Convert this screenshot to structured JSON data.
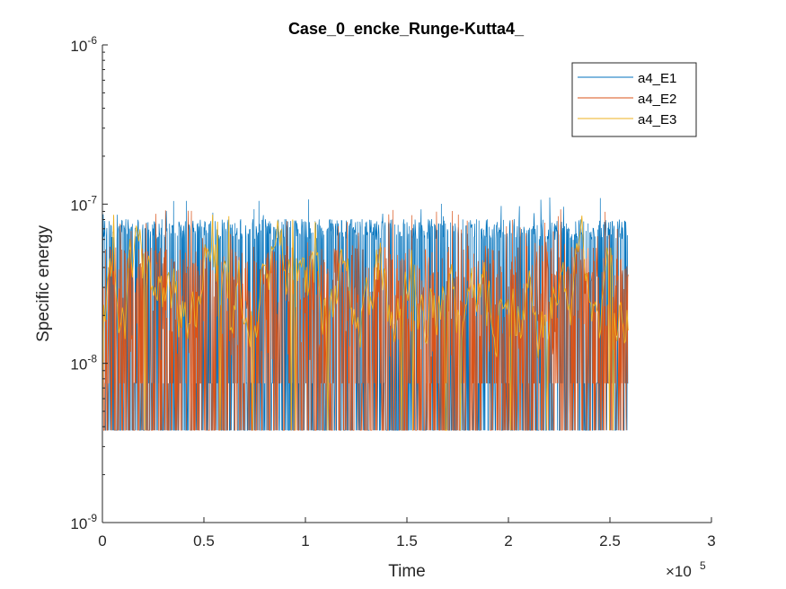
{
  "chart_data": {
    "type": "line",
    "title": "Case_0_encke_Runge-Kutta4_",
    "xlabel": "Time",
    "ylabel": "Specific energy",
    "x_exponent_label": "×10",
    "x_exponent_power": "5",
    "xlim": [
      0,
      300000
    ],
    "ylim": [
      1e-09,
      1e-06
    ],
    "yscale": "log",
    "grid": false,
    "legend_position": "top-right",
    "x_ticks": [
      {
        "value": 0,
        "label": "0"
      },
      {
        "value": 50000,
        "label": "0.5"
      },
      {
        "value": 100000,
        "label": "1"
      },
      {
        "value": 150000,
        "label": "1.5"
      },
      {
        "value": 200000,
        "label": "2"
      },
      {
        "value": 250000,
        "label": "2.5"
      },
      {
        "value": 300000,
        "label": "3"
      }
    ],
    "y_ticks": [
      {
        "value": 1e-09,
        "base": "10",
        "exp": "-9"
      },
      {
        "value": 1e-08,
        "base": "10",
        "exp": "-8"
      },
      {
        "value": 1e-07,
        "base": "10",
        "exp": "-7"
      },
      {
        "value": 1e-06,
        "base": "10",
        "exp": "-6"
      }
    ],
    "series": [
      {
        "name": "a4_E1",
        "color": "#0072BD",
        "x_range": [
          0,
          259000
        ],
        "min": 3.8e-09,
        "max": 1.1e-07,
        "typical_high": 7e-08,
        "typical_low": 7.5e-09,
        "kind": "dense"
      },
      {
        "name": "a4_E2",
        "color": "#D95319",
        "x_range": [
          0,
          259000
        ],
        "min": 3.8e-09,
        "max": 9.5e-08,
        "typical_high": 5.5e-08,
        "typical_low": 7.5e-09,
        "kind": "dense"
      },
      {
        "name": "a4_E3",
        "color": "#EDB120",
        "x_range": [
          0,
          259000
        ],
        "min": 3.8e-09,
        "max": 9e-08,
        "typical_high": 4e-08,
        "typical_low": 1.2e-08,
        "kind": "smooth"
      }
    ]
  }
}
